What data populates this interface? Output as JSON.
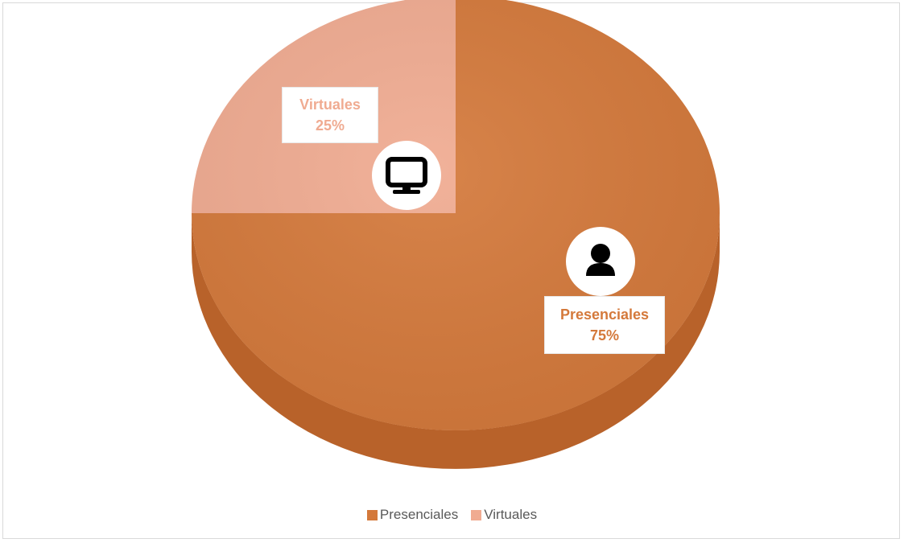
{
  "chart_data": {
    "type": "pie",
    "title": "",
    "legend_position": "bottom",
    "series": [
      {
        "name": "Presenciales",
        "value": 75,
        "label": "75%",
        "color": "#d4793b",
        "icon": "person-icon"
      },
      {
        "name": "Virtuales",
        "value": 25,
        "label": "25%",
        "color": "#f0ab91",
        "icon": "monitor-icon"
      }
    ]
  },
  "colors": {
    "presenciales_top": "#d4793b",
    "presenciales_side": "#b8622a",
    "virtuales_top": "#f0ab91",
    "label_presenciales_text": "#d4793b",
    "label_virtuales_text": "#f0ab91",
    "legend_text": "#595959"
  }
}
